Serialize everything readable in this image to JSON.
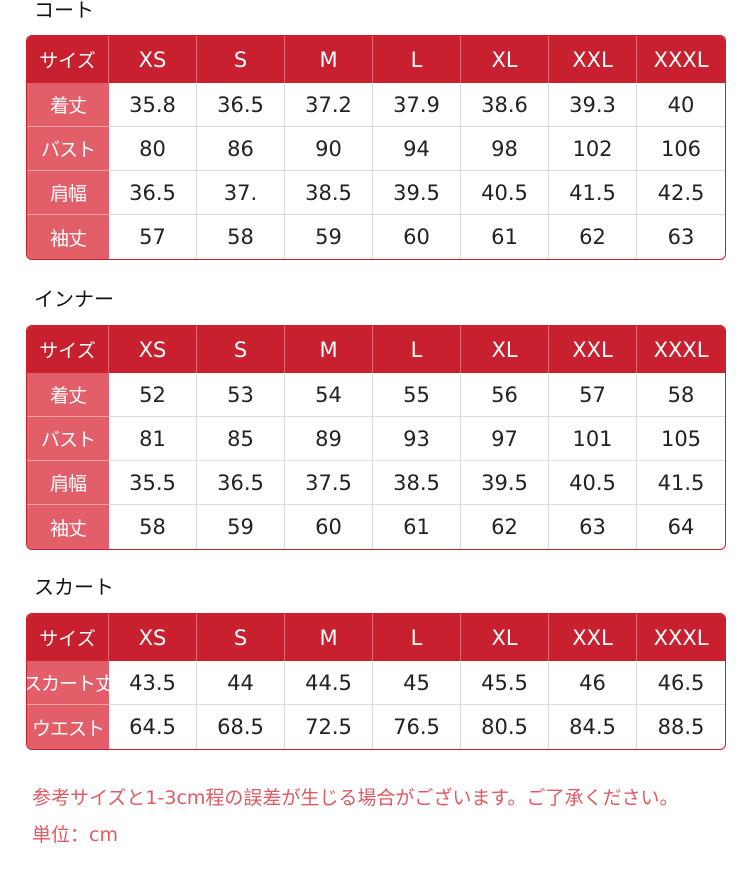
{
  "sections": [
    {
      "title": "コート",
      "table": {
        "header": [
          "サイズ",
          "XS",
          "S",
          "M",
          "L",
          "XL",
          "XXL",
          "XXXL"
        ],
        "rows": [
          [
            "着丈",
            "35.8",
            "36.5",
            "37.2",
            "37.9",
            "38.6",
            "39.3",
            "40"
          ],
          [
            "バスト",
            "80",
            "86",
            "90",
            "94",
            "98",
            "102",
            "106"
          ],
          [
            "肩幅",
            "36.5",
            "37.",
            "38.5",
            "39.5",
            "40.5",
            "41.5",
            "42.5"
          ],
          [
            "袖丈",
            "57",
            "58",
            "59",
            "60",
            "61",
            "62",
            "63"
          ]
        ]
      }
    },
    {
      "title": "インナー",
      "table": {
        "header": [
          "サイズ",
          "XS",
          "S",
          "M",
          "L",
          "XL",
          "XXL",
          "XXXL"
        ],
        "rows": [
          [
            "着丈",
            "52",
            "53",
            "54",
            "55",
            "56",
            "57",
            "58"
          ],
          [
            "バスト",
            "81",
            "85",
            "89",
            "93",
            "97",
            "101",
            "105"
          ],
          [
            "肩幅",
            "35.5",
            "36.5",
            "37.5",
            "38.5",
            "39.5",
            "40.5",
            "41.5"
          ],
          [
            "袖丈",
            "58",
            "59",
            "60",
            "61",
            "62",
            "63",
            "64"
          ]
        ]
      }
    },
    {
      "title": "スカート",
      "table": {
        "header": [
          "サイズ",
          "XS",
          "S",
          "M",
          "L",
          "XL",
          "XXL",
          "XXXL"
        ],
        "rows": [
          [
            "スカート丈",
            "43.5",
            "44",
            "44.5",
            "45",
            "45.5",
            "46",
            "46.5"
          ],
          [
            "ウエスト",
            "64.5",
            "68.5",
            "72.5",
            "76.5",
            "80.5",
            "84.5",
            "88.5"
          ]
        ]
      }
    }
  ],
  "note": "参考サイズと1-3cm程の誤差が生じる場合がございます。ご了承ください。",
  "unit": "単位：cm"
}
